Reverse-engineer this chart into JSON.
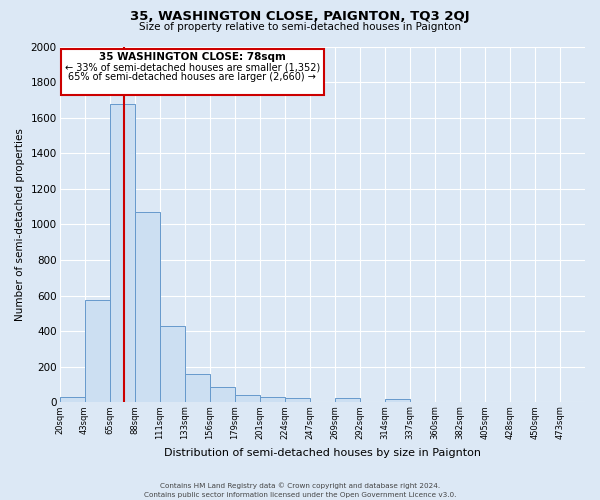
{
  "title": "35, WASHINGTON CLOSE, PAIGNTON, TQ3 2QJ",
  "subtitle": "Size of property relative to semi-detached houses in Paignton",
  "xlabel": "Distribution of semi-detached houses by size in Paignton",
  "ylabel": "Number of semi-detached properties",
  "bin_labels": [
    "20sqm",
    "43sqm",
    "65sqm",
    "88sqm",
    "111sqm",
    "133sqm",
    "156sqm",
    "179sqm",
    "201sqm",
    "224sqm",
    "247sqm",
    "269sqm",
    "292sqm",
    "314sqm",
    "337sqm",
    "360sqm",
    "382sqm",
    "405sqm",
    "428sqm",
    "450sqm",
    "473sqm"
  ],
  "bar_heights": [
    30,
    575,
    1675,
    1070,
    430,
    160,
    85,
    40,
    30,
    25,
    0,
    25,
    0,
    20,
    0,
    0,
    0,
    0,
    0,
    0,
    0
  ],
  "bar_color": "#ccdff2",
  "bar_edge_color": "#6699cc",
  "ylim": [
    0,
    2000
  ],
  "yticks": [
    0,
    200,
    400,
    600,
    800,
    1000,
    1200,
    1400,
    1600,
    1800,
    2000
  ],
  "property_line_x": 2,
  "property_line_label": "35 WASHINGTON CLOSE: 78sqm",
  "annotation_smaller": "← 33% of semi-detached houses are smaller (1,352)",
  "annotation_larger": "65% of semi-detached houses are larger (2,660) →",
  "annotation_box_color": "#ffffff",
  "annotation_box_edge": "#cc0000",
  "red_line_color": "#cc0000",
  "footer1": "Contains HM Land Registry data © Crown copyright and database right 2024.",
  "footer2": "Contains public sector information licensed under the Open Government Licence v3.0.",
  "plot_bg_color": "#dce8f5",
  "n_bars": 21
}
